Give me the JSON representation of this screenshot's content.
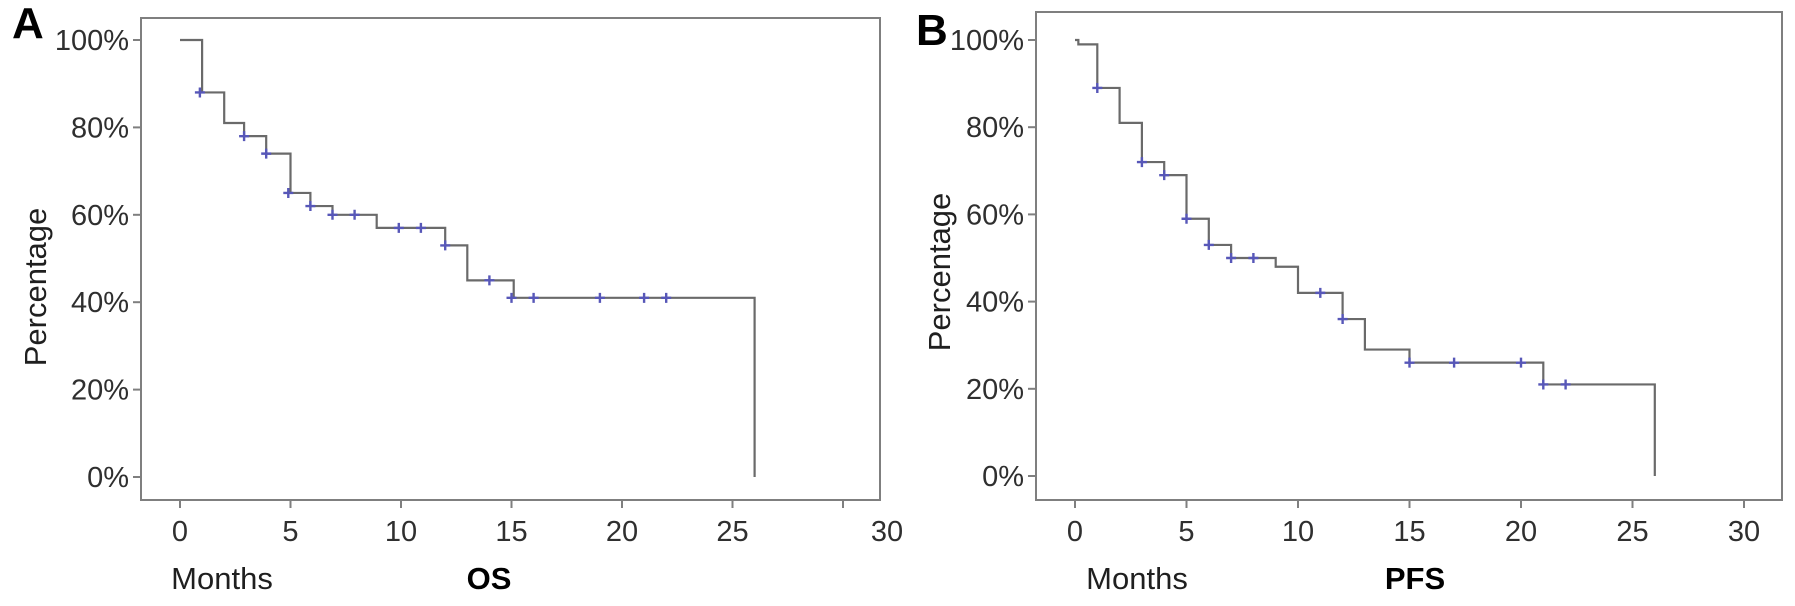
{
  "figure": {
    "background": "#ffffff",
    "axis_color": "#7f7f7f",
    "tick_text_color": "#2f2f2f",
    "label_text_color": "#1f1f1f",
    "panel_letter_color": "#000000"
  },
  "chart_data": [
    {
      "type": "line",
      "chart_style": "kaplan-meier-step",
      "panel_label": "A",
      "title": "OS",
      "xlabel": "Months",
      "ylabel": "Percentage",
      "xlim": [
        0,
        30
      ],
      "ylim": [
        0,
        100
      ],
      "x_ticks": [
        0,
        5,
        10,
        15,
        20,
        25,
        30
      ],
      "y_ticks": [
        0,
        20,
        40,
        60,
        80,
        100
      ],
      "y_tick_labels": [
        "0%",
        "20%",
        "40%",
        "60%",
        "80%",
        "100%"
      ],
      "grid": false,
      "legend": "none",
      "line_color": "#6a6a6a",
      "censor_color": "#5757b8",
      "steps_months_percent": [
        [
          0,
          100
        ],
        [
          1,
          88
        ],
        [
          2,
          81
        ],
        [
          2.9,
          78
        ],
        [
          3.9,
          74
        ],
        [
          5,
          65
        ],
        [
          5.9,
          62
        ],
        [
          6.9,
          60
        ],
        [
          8.9,
          57
        ],
        [
          12,
          53
        ],
        [
          13,
          45
        ],
        [
          15.1,
          41
        ],
        [
          26,
          0
        ]
      ],
      "censor_marks_months_percent": [
        [
          0.9,
          88
        ],
        [
          2.9,
          78
        ],
        [
          3.9,
          74
        ],
        [
          4.9,
          65
        ],
        [
          5.9,
          62
        ],
        [
          6.9,
          60
        ],
        [
          7.9,
          60
        ],
        [
          9.9,
          57
        ],
        [
          10.9,
          57
        ],
        [
          12,
          53
        ],
        [
          14,
          45
        ],
        [
          15,
          41
        ],
        [
          16,
          41
        ],
        [
          19,
          41
        ],
        [
          21,
          41
        ],
        [
          22,
          41
        ]
      ]
    },
    {
      "type": "line",
      "chart_style": "kaplan-meier-step",
      "panel_label": "B",
      "title": "PFS",
      "xlabel": "Months",
      "ylabel": "Percentage",
      "xlim": [
        0,
        30
      ],
      "ylim": [
        0,
        100
      ],
      "x_ticks": [
        0,
        5,
        10,
        15,
        20,
        25,
        30
      ],
      "y_ticks": [
        0,
        20,
        40,
        60,
        80,
        100
      ],
      "y_tick_labels": [
        "0%",
        "20%",
        "40%",
        "60%",
        "80%",
        "100%"
      ],
      "grid": false,
      "legend": "none",
      "line_color": "#6a6a6a",
      "censor_color": "#5757b8",
      "steps_months_percent": [
        [
          0,
          100
        ],
        [
          0.15,
          99
        ],
        [
          1,
          89
        ],
        [
          2,
          81
        ],
        [
          3,
          72
        ],
        [
          4,
          69
        ],
        [
          5,
          59
        ],
        [
          6,
          53
        ],
        [
          7,
          50
        ],
        [
          9,
          48
        ],
        [
          10,
          42
        ],
        [
          12,
          36
        ],
        [
          13,
          29
        ],
        [
          15,
          26
        ],
        [
          21,
          21
        ],
        [
          26,
          0
        ]
      ],
      "censor_marks_months_percent": [
        [
          1,
          89
        ],
        [
          3,
          72
        ],
        [
          4,
          69
        ],
        [
          5,
          59
        ],
        [
          6,
          53
        ],
        [
          7,
          50
        ],
        [
          8,
          50
        ],
        [
          11,
          42
        ],
        [
          12,
          36
        ],
        [
          15,
          26
        ],
        [
          17,
          26
        ],
        [
          20,
          26
        ],
        [
          21,
          21
        ],
        [
          22,
          21
        ]
      ]
    }
  ]
}
